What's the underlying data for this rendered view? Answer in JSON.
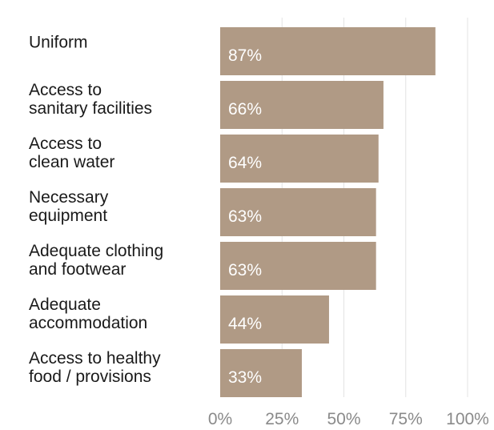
{
  "chart_data": {
    "type": "bar",
    "orientation": "horizontal",
    "categories": [
      "Uniform",
      "Access to sanitary facilities",
      "Access to clean water",
      "Necessary equipment",
      "Adequate clothing and footwear",
      "Adequate accommodation",
      "Access to healthy food / provisions"
    ],
    "category_lines": [
      [
        "Uniform"
      ],
      [
        "Access to",
        "sanitary facilities"
      ],
      [
        "Access to",
        "clean water"
      ],
      [
        "Necessary",
        "equipment"
      ],
      [
        "Adequate clothing",
        "and footwear"
      ],
      [
        "Adequate",
        "accommodation"
      ],
      [
        "Access to healthy",
        "food / provisions"
      ]
    ],
    "values": [
      87,
      66,
      64,
      63,
      63,
      44,
      33
    ],
    "value_labels": [
      "87%",
      "66%",
      "64%",
      "63%",
      "63%",
      "44%",
      "33%"
    ],
    "xlim": [
      0,
      100
    ],
    "xticks": [
      0,
      25,
      50,
      75,
      100
    ],
    "xtick_labels": [
      "0%",
      "25%",
      "50%",
      "75%",
      "100%"
    ],
    "title": "",
    "xlabel": "",
    "ylabel": "",
    "grid": true,
    "bar_color": "#b09a85"
  }
}
